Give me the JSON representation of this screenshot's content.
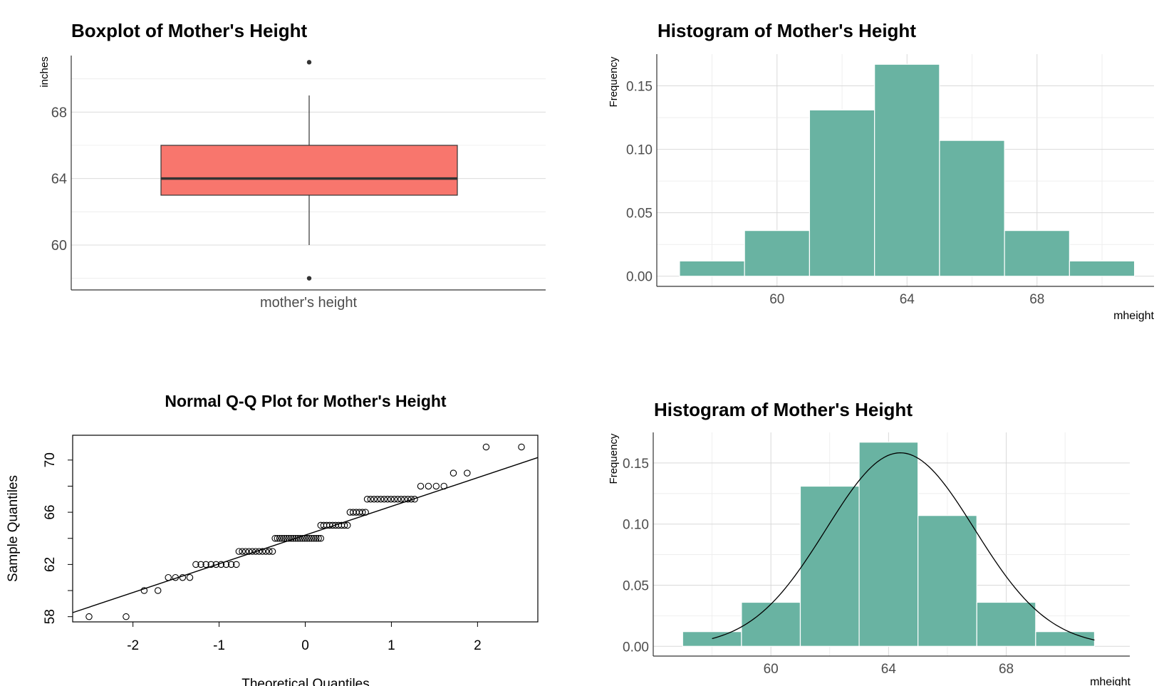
{
  "chart_data": [
    {
      "type": "boxplot",
      "title": "Boxplot of Mother's Height",
      "xlabel": "",
      "ylabel": "inches",
      "category": "mother's height",
      "ylim": [
        57.3,
        71.4
      ],
      "yticks": [
        60,
        64,
        68
      ],
      "min_whisker": 60,
      "q1": 63,
      "median": 64,
      "q3": 66,
      "max_whisker": 69,
      "outliers": [
        58,
        71
      ],
      "fill": "#f8766d",
      "grid": true
    },
    {
      "type": "bar",
      "title": "Histogram of Mother's Height",
      "xlabel": "mheight",
      "ylabel": "Frequency",
      "bin_edges": [
        57,
        59,
        61,
        63,
        65,
        67,
        69,
        71
      ],
      "values": [
        0.012,
        0.036,
        0.131,
        0.167,
        0.107,
        0.036,
        0.012
      ],
      "xlim": [
        56.3,
        71.6
      ],
      "ylim": [
        -0.008,
        0.175
      ],
      "xticks": [
        60,
        64,
        68
      ],
      "yticks": [
        "0.00",
        "0.05",
        "0.10",
        "0.15"
      ],
      "fill": "#69b3a2",
      "grid": true
    },
    {
      "type": "scatter",
      "title": "Normal Q-Q Plot for Mother's Height",
      "xlabel": "Theoretical Quantiles",
      "ylabel": "Sample Quantiles",
      "xlim": [
        -2.7,
        2.7
      ],
      "ylim": [
        57.6,
        71.9
      ],
      "xticks": [
        "-2",
        "-1",
        "0",
        "1",
        "2"
      ],
      "yticks": [
        "58",
        "62",
        "66",
        "70"
      ],
      "groups": [
        {
          "y": 58,
          "x_from": -2.51,
          "x_to": -2.08,
          "n": 2
        },
        {
          "y": 60,
          "x_from": -1.87,
          "x_to": -1.71,
          "n": 2
        },
        {
          "y": 61,
          "x_from": -1.59,
          "x_to": -1.34,
          "n": 4
        },
        {
          "y": 62,
          "x_from": -1.27,
          "x_to": -0.8,
          "n": 9
        },
        {
          "y": 63,
          "x_from": -0.77,
          "x_to": -0.38,
          "n": 11
        },
        {
          "y": 64,
          "x_from": -0.35,
          "x_to": 0.18,
          "n": 21
        },
        {
          "y": 65,
          "x_from": 0.18,
          "x_to": 0.49,
          "n": 10
        },
        {
          "y": 66,
          "x_from": 0.52,
          "x_to": 0.7,
          "n": 6
        },
        {
          "y": 67,
          "x_from": 0.72,
          "x_to": 1.27,
          "n": 15
        },
        {
          "y": 68,
          "x_from": 1.34,
          "x_to": 1.61,
          "n": 4
        },
        {
          "y": 69,
          "x_from": 1.72,
          "x_to": 1.88,
          "n": 2
        },
        {
          "y": 71,
          "x_from": 2.1,
          "x_to": 2.51,
          "n": 2
        }
      ],
      "reference_line": {
        "intercept": 64.25,
        "slope": 2.2
      }
    },
    {
      "type": "bar",
      "title": "Histogram of Mother's Height",
      "xlabel": "mheight",
      "ylabel": "Frequency",
      "bin_edges": [
        57,
        59,
        61,
        63,
        65,
        67,
        69,
        71
      ],
      "values": [
        0.012,
        0.036,
        0.131,
        0.167,
        0.107,
        0.036,
        0.012
      ],
      "xlim": [
        56.0,
        72.2
      ],
      "ylim": [
        -0.008,
        0.175
      ],
      "xticks": [
        60,
        64,
        68
      ],
      "yticks": [
        "0.00",
        "0.05",
        "0.10",
        "0.15"
      ],
      "fill": "#69b3a2",
      "grid": true,
      "density_curve": {
        "mean": 64.4,
        "sd": 2.52,
        "x_range": [
          58,
          71
        ]
      }
    }
  ]
}
